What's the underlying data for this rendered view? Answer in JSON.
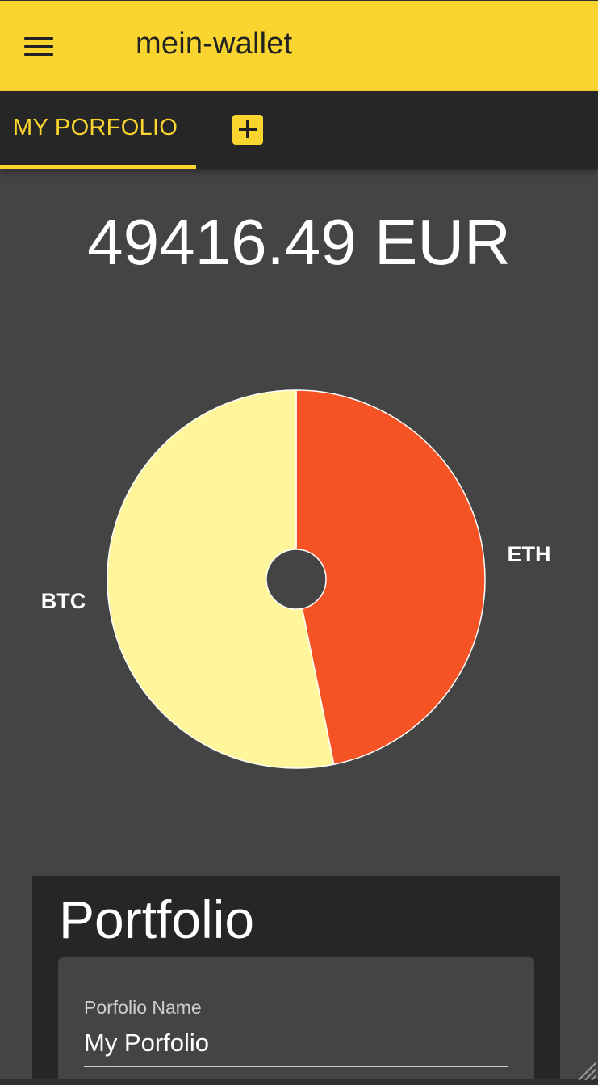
{
  "app": {
    "title": "mein-wallet",
    "accent_color": "#fad52f",
    "menu_icon": "hamburger-menu-icon"
  },
  "tabs": {
    "active_label": "MY PORFOLIO",
    "add_icon": "plus-icon"
  },
  "portfolio_total": "49416.49 EUR",
  "chart_data": {
    "type": "pie",
    "categories": [
      "ETH",
      "BTC"
    ],
    "values": [
      46.8,
      53.2
    ],
    "colors": [
      "#f55323",
      "#fff59a"
    ],
    "donut_hole": true,
    "title": "",
    "legend": "none (labels beside slices)"
  },
  "card": {
    "title": "Portfolio",
    "name_field": {
      "label": "Porfolio Name",
      "value": "My Porfolio"
    }
  }
}
